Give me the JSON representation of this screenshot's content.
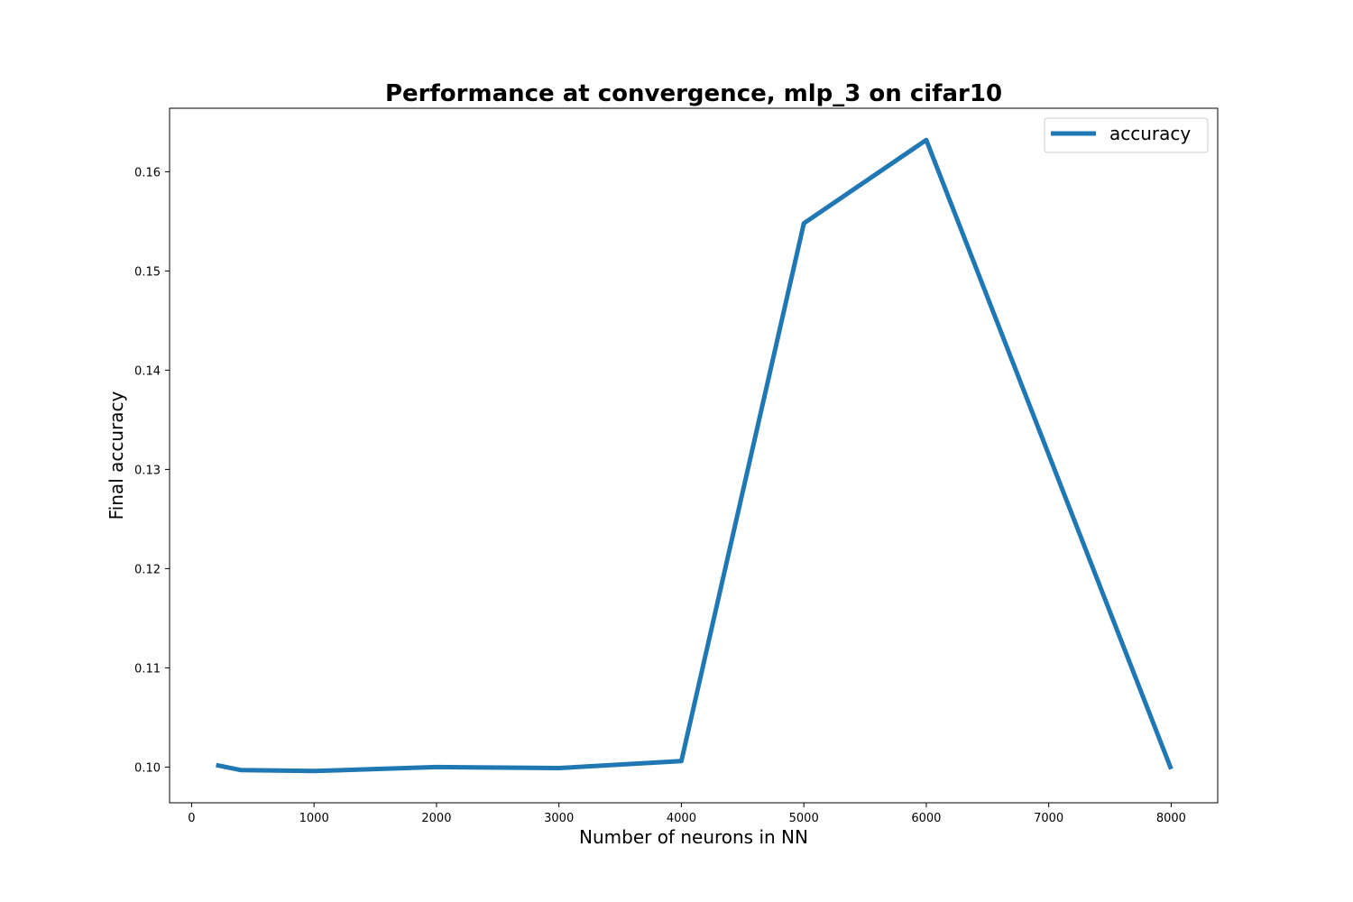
{
  "chart_data": {
    "type": "line",
    "title": "Performance at convergence, mlp_3 on cifar10",
    "xlabel": "Number of neurons in NN",
    "ylabel": "Final accuracy",
    "xlim": [
      -180,
      8380
    ],
    "ylim": [
      0.0964,
      0.1664
    ],
    "xticks": [
      0,
      1000,
      2000,
      3000,
      4000,
      5000,
      6000,
      7000,
      8000
    ],
    "xtick_labels": [
      "0",
      "1000",
      "2000",
      "3000",
      "4000",
      "5000",
      "6000",
      "7000",
      "8000"
    ],
    "yticks": [
      0.1,
      0.11,
      0.12,
      0.13,
      0.14,
      0.15,
      0.16
    ],
    "ytick_labels": [
      "0.10",
      "0.11",
      "0.12",
      "0.13",
      "0.14",
      "0.15",
      "0.16"
    ],
    "grid": false,
    "legend_position": "top-right",
    "series": [
      {
        "name": "accuracy",
        "color": "#1f77b4",
        "x": [
          200,
          400,
          1000,
          2000,
          3000,
          4000,
          5000,
          6000,
          8000
        ],
        "y": [
          0.1002,
          0.0997,
          0.0996,
          0.1,
          0.0999,
          0.1006,
          0.1548,
          0.1632,
          0.0998
        ]
      }
    ]
  }
}
